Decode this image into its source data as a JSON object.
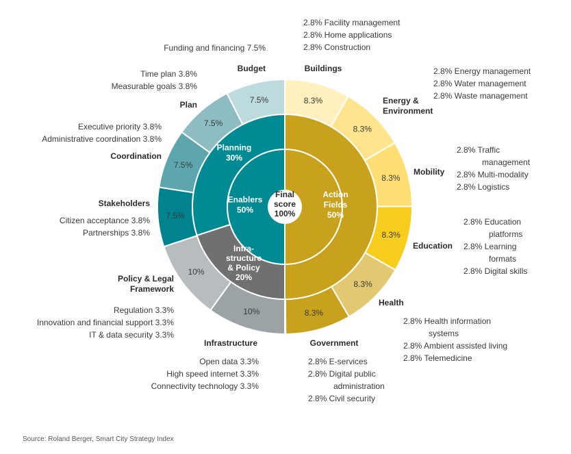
{
  "chart_data": {
    "type": "sunburst",
    "center": {
      "lines": [
        "Final",
        "score",
        "100%"
      ]
    },
    "inner": [
      {
        "name": "Action Fields",
        "lines": [
          "Action",
          "Fields",
          "50%"
        ],
        "value": 50,
        "color": "#c8a21c"
      },
      {
        "name": "Infrastructure & Policy",
        "lines": [
          "Infra-",
          "structure",
          "& Policy",
          "20%"
        ],
        "value": 20,
        "color": "#707070"
      },
      {
        "name": "Planning",
        "lines": [
          "Planning",
          "30%"
        ],
        "value": 30,
        "color": "#008a94"
      }
    ],
    "enablers": {
      "lines": [
        "Enablers",
        "50%"
      ],
      "value": 50,
      "color": "#008a94"
    },
    "outer": [
      {
        "name": "Buildings",
        "label": "8.3%",
        "value": 8.3,
        "color": "#fff0bd",
        "subs": [
          "2.8%  Facility management",
          "2.8%  Home applications",
          "2.8%  Construction"
        ]
      },
      {
        "name": "Energy & Environment",
        "label": "8.3%",
        "value": 8.3,
        "color": "#ffe48e",
        "subs": [
          "2.8%  Energy management",
          "2.8%  Water management",
          "2.8%  Waste management"
        ]
      },
      {
        "name": "Mobility",
        "label": "8.3%",
        "value": 8.3,
        "color": "#ffdf74",
        "subs": [
          "2.8%  Traffic",
          "management",
          "2.8%  Multi-modality",
          "2.8%  Logistics"
        ]
      },
      {
        "name": "Education",
        "label": "8.3%",
        "value": 8.3,
        "color": "#f7ce1e",
        "subs": [
          "2.8%  Education",
          "platforms",
          "2.8%  Learning",
          "formats",
          "2.8%  Digital skills"
        ]
      },
      {
        "name": "Health",
        "label": "8.3%",
        "value": 8.3,
        "color": "#e1c871",
        "subs": [
          "2.8%  Health information",
          "systems",
          "2.8%  Ambient assisted living",
          "2.8%  Telemedicine"
        ]
      },
      {
        "name": "Government",
        "label": "8.3%",
        "value": 8.3,
        "color": "#c8a21c",
        "subs": [
          "2.8%  E-services",
          "2.8%  Digital public",
          "administration",
          "2.8%  Civil security"
        ]
      },
      {
        "name": "Infrastructure",
        "label": "10%",
        "value": 10,
        "color": "#9ba3a6",
        "subs": [
          "Open data  3.3%",
          "High speed internet  3.3%",
          "Connectivity technology  3.3%"
        ]
      },
      {
        "name": "Policy & Legal Framework",
        "label": "10%",
        "value": 10,
        "color": "#b7bcbe",
        "subs": [
          "Regulation  3.3%",
          "Innovation and financial support  3.3%",
          "IT & data security  3.3%"
        ]
      },
      {
        "name": "Stakeholders",
        "label": "7.5%",
        "value": 7.5,
        "color": "#00838e",
        "subs": [
          "Citizen acceptance  3.8%",
          "Partnerships  3.8%"
        ]
      },
      {
        "name": "Coordination",
        "label": "7.5%",
        "value": 7.5,
        "color": "#5ea6ad",
        "subs": [
          "Executive priority  3.8%",
          "Administrative coordination  3.8%"
        ]
      },
      {
        "name": "Plan",
        "label": "7.5%",
        "value": 7.5,
        "color": "#8dbdc2",
        "subs": [
          "Time plan  3.8%",
          "Measurable goals  3.8%"
        ]
      },
      {
        "name": "Budget",
        "label": "7.5%",
        "value": 7.5,
        "color": "#bddbdd",
        "subs": [
          "Funding and financing  7.5%"
        ]
      }
    ]
  },
  "source": "Source: Roland Berger, Smart City Strategy Index"
}
